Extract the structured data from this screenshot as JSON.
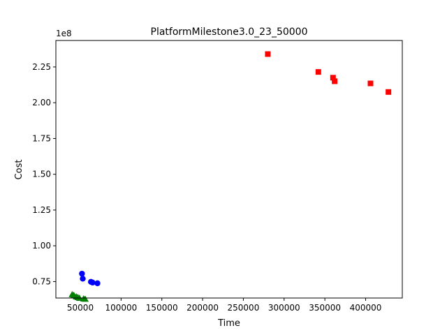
{
  "chart_data": {
    "type": "scatter",
    "title": "PlatformMilestone3.0_23_50000",
    "xlabel": "Time",
    "ylabel": "Cost",
    "y_offset_label": "1e8",
    "xlim": [
      20000,
      445000
    ],
    "ylim": [
      0.635,
      2.435
    ],
    "x_ticks": [
      50000,
      100000,
      150000,
      200000,
      250000,
      300000,
      350000,
      400000
    ],
    "x_tick_labels": [
      "50000",
      "100000",
      "150000",
      "200000",
      "250000",
      "300000",
      "350000",
      "400000"
    ],
    "y_ticks": [
      0.75,
      1.0,
      1.25,
      1.5,
      1.75,
      2.0,
      2.25
    ],
    "y_tick_labels": [
      "0.75",
      "1.00",
      "1.25",
      "1.50",
      "1.75",
      "2.00",
      "2.25"
    ],
    "grid": false,
    "legend": "none",
    "series": [
      {
        "marker": "square",
        "color": "#ff0000",
        "x": [
          280000,
          342000,
          360000,
          362000,
          406000,
          428000
        ],
        "y": [
          2.34,
          2.215,
          2.175,
          2.15,
          2.135,
          2.075
        ]
      },
      {
        "marker": "circle",
        "color": "#0000ff",
        "x": [
          52000,
          53000,
          63000,
          65000,
          71000
        ],
        "y": [
          0.805,
          0.77,
          0.748,
          0.743,
          0.738
        ]
      },
      {
        "marker": "triangle",
        "color": "#008000",
        "x": [
          40000,
          42000,
          45000,
          47000,
          49000,
          54000,
          56000
        ],
        "y": [
          0.66,
          0.655,
          0.645,
          0.64,
          0.635,
          0.63,
          0.628
        ]
      }
    ]
  }
}
